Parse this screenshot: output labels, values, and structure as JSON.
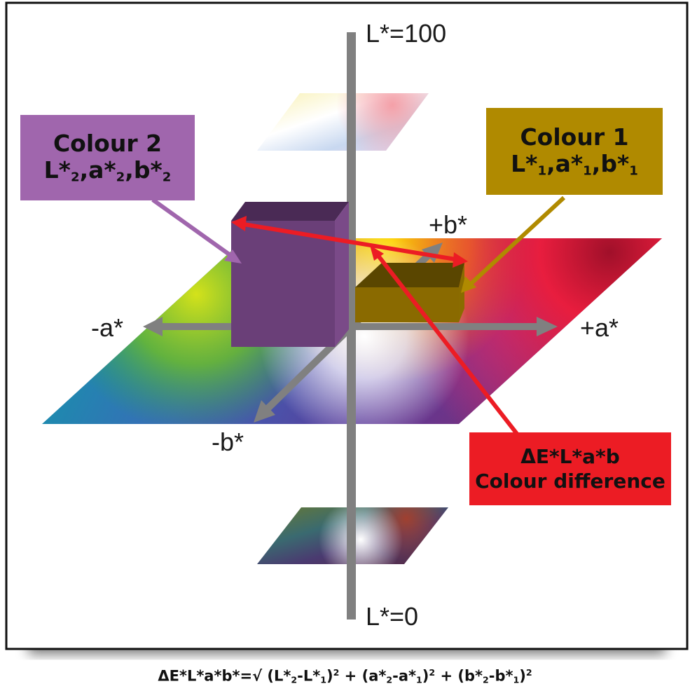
{
  "axes": {
    "l_top": "L*=100",
    "l_bottom": "L*=0",
    "pos_a": "+a*",
    "neg_a": "-a*",
    "pos_b": "+b*",
    "neg_b": "-b*"
  },
  "colour1": {
    "title": "Colour 1",
    "l": "L*",
    "l_sub": "1",
    "a": "a*",
    "a_sub": "1",
    "b": "b*",
    "b_sub": "1",
    "color": "#b08a00"
  },
  "colour2": {
    "title": "Colour 2",
    "l": "L*",
    "l_sub": "2",
    "a": "a*",
    "a_sub": "2",
    "b": "b*",
    "b_sub": "2",
    "color": "#a066ad"
  },
  "difference": {
    "line1": "ΔE*L*a*b",
    "line2": "Colour difference",
    "color": "#ec1c24"
  },
  "formula": {
    "lhs": "ΔE*L*a*b*=√",
    "t1a": "(L*",
    "t1s1": "2",
    "t1b": "-L*",
    "t1s2": "1",
    "t1c": ")",
    "t2a": "(a*",
    "t2s1": "2",
    "t2b": "-a*",
    "t2s2": "1",
    "t2c": ")",
    "t3a": "(b*",
    "t3s1": "2",
    "t3b": "-b*",
    "t3s2": "1",
    "t3c": ")",
    "exp": "2",
    "plus": "+"
  }
}
